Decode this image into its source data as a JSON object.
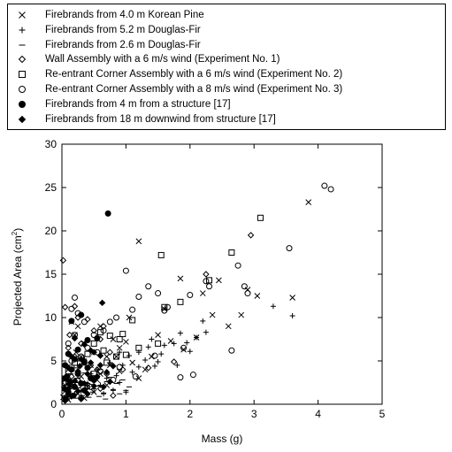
{
  "chart_data": {
    "type": "scatter",
    "xlabel": "Mass (g)",
    "ylabel": "Projected Area (cm",
    "ylabel_sup": "2",
    "ylabel_close": ")",
    "xlim": [
      0,
      5
    ],
    "ylim": [
      0,
      30
    ],
    "x_ticks": [
      "0",
      "1",
      "2",
      "3",
      "4",
      "5"
    ],
    "y_ticks": [
      "0",
      "5",
      "10",
      "15",
      "20",
      "25",
      "30"
    ],
    "grid": false,
    "legend_position": "top",
    "series": [
      {
        "name": "Firebrands from 4.0 m Korean Pine",
        "marker": "x",
        "points": [
          [
            3.85,
            23.3
          ],
          [
            1.2,
            18.8
          ],
          [
            2.45,
            14.3
          ],
          [
            1.85,
            14.5
          ],
          [
            2.2,
            12.8
          ],
          [
            2.9,
            13.2
          ],
          [
            3.05,
            12.5
          ],
          [
            3.6,
            12.3
          ],
          [
            1.6,
            11.0
          ],
          [
            2.35,
            10.3
          ],
          [
            2.8,
            10.3
          ],
          [
            1.05,
            10.0
          ],
          [
            0.15,
            9.5
          ],
          [
            0.25,
            9.0
          ],
          [
            0.6,
            9.0
          ],
          [
            2.6,
            9.0
          ],
          [
            1.5,
            8.0
          ],
          [
            0.8,
            7.5
          ],
          [
            1.0,
            7.2
          ],
          [
            1.7,
            7.3
          ],
          [
            2.1,
            7.7
          ],
          [
            0.9,
            6.5
          ],
          [
            1.4,
            5.5
          ],
          [
            0.5,
            6.0
          ],
          [
            0.35,
            7.0
          ],
          [
            0.2,
            8.0
          ],
          [
            0.7,
            5.5
          ],
          [
            1.1,
            4.8
          ],
          [
            1.3,
            4.0
          ],
          [
            0.45,
            4.5
          ],
          [
            0.1,
            4.0
          ],
          [
            0.05,
            3.0
          ],
          [
            0.3,
            3.2
          ],
          [
            0.6,
            3.5
          ],
          [
            0.9,
            3.8
          ],
          [
            1.2,
            3.0
          ],
          [
            0.15,
            2.5
          ],
          [
            0.4,
            2.0
          ],
          [
            0.7,
            2.2
          ],
          [
            0.05,
            1.5
          ],
          [
            0.25,
            1.2
          ],
          [
            0.5,
            1.4
          ],
          [
            0.02,
            0.8
          ],
          [
            0.1,
            0.5
          ],
          [
            0.35,
            0.7
          ],
          [
            1.9,
            6.3
          ],
          [
            0.75,
            4.5
          ],
          [
            0.55,
            2.8
          ],
          [
            0.85,
            5.5
          ],
          [
            0.22,
            6.0
          ]
        ]
      },
      {
        "name": "Firebrands from 5.2 m Douglas-Fir",
        "marker": "+",
        "points": [
          [
            3.3,
            11.3
          ],
          [
            3.6,
            10.2
          ],
          [
            2.2,
            9.6
          ],
          [
            1.85,
            8.2
          ],
          [
            2.1,
            7.7
          ],
          [
            2.25,
            8.3
          ],
          [
            1.95,
            7.1
          ],
          [
            1.75,
            7.0
          ],
          [
            1.6,
            6.8
          ],
          [
            1.4,
            7.5
          ],
          [
            1.35,
            6.6
          ],
          [
            1.55,
            5.8
          ],
          [
            1.2,
            6.0
          ],
          [
            1.05,
            5.6
          ],
          [
            0.95,
            4.5
          ],
          [
            1.2,
            4.3
          ],
          [
            1.8,
            4.5
          ],
          [
            1.45,
            4.4
          ],
          [
            1.1,
            3.7
          ],
          [
            0.85,
            3.3
          ],
          [
            0.7,
            3.0
          ],
          [
            0.9,
            2.5
          ],
          [
            0.6,
            2.2
          ],
          [
            0.5,
            1.8
          ],
          [
            0.4,
            2.4
          ],
          [
            0.3,
            1.5
          ],
          [
            0.2,
            1.2
          ],
          [
            0.15,
            2.0
          ],
          [
            0.1,
            1.0
          ],
          [
            0.05,
            0.6
          ],
          [
            0.45,
            3.5
          ],
          [
            0.55,
            4.0
          ],
          [
            0.75,
            4.8
          ],
          [
            0.25,
            3.8
          ],
          [
            0.35,
            5.2
          ],
          [
            1.0,
            1.4
          ],
          [
            0.8,
            1.6
          ],
          [
            0.65,
            1.2
          ],
          [
            2.0,
            6.1
          ],
          [
            1.5,
            4.9
          ],
          [
            1.3,
            5.1
          ],
          [
            0.9,
            6.0
          ]
        ]
      },
      {
        "name": "Firebrands from 2.6 m Douglas-Fir",
        "marker": "-",
        "points": [
          [
            0.05,
            1.0
          ],
          [
            0.1,
            1.5
          ],
          [
            0.15,
            2.0
          ],
          [
            0.2,
            2.5
          ],
          [
            0.25,
            3.0
          ],
          [
            0.3,
            2.2
          ],
          [
            0.35,
            3.6
          ],
          [
            0.4,
            1.8
          ],
          [
            0.45,
            2.9
          ],
          [
            0.5,
            3.3
          ],
          [
            0.55,
            2.1
          ],
          [
            0.6,
            4.0
          ],
          [
            0.65,
            1.3
          ],
          [
            0.7,
            2.6
          ],
          [
            0.75,
            3.1
          ],
          [
            0.8,
            1.7
          ],
          [
            0.85,
            2.4
          ],
          [
            0.9,
            1.2
          ],
          [
            0.95,
            2.8
          ],
          [
            1.0,
            1.6
          ],
          [
            1.05,
            2.0
          ],
          [
            0.08,
            0.5
          ],
          [
            0.12,
            0.9
          ],
          [
            0.18,
            1.1
          ],
          [
            0.22,
            0.7
          ],
          [
            0.28,
            1.6
          ],
          [
            0.32,
            1.0
          ],
          [
            0.38,
            2.5
          ],
          [
            0.42,
            0.8
          ],
          [
            0.48,
            1.4
          ],
          [
            0.58,
            0.9
          ],
          [
            0.68,
            0.6
          ],
          [
            0.03,
            2.0
          ],
          [
            0.06,
            3.0
          ],
          [
            0.14,
            3.5
          ],
          [
            0.24,
            4.2
          ],
          [
            0.34,
            4.6
          ]
        ]
      },
      {
        "name": "Wall Assembly with a 6 m/s wind (Experiment No. 1)",
        "marker": "diamond-open",
        "points": [
          [
            0.02,
            16.6
          ],
          [
            2.95,
            19.5
          ],
          [
            2.25,
            15.0
          ],
          [
            0.05,
            11.2
          ],
          [
            0.2,
            11.3
          ],
          [
            0.25,
            10.0
          ],
          [
            0.4,
            9.8
          ],
          [
            0.5,
            8.5
          ],
          [
            0.6,
            7.5
          ],
          [
            0.3,
            7.0
          ],
          [
            0.1,
            6.5
          ],
          [
            0.2,
            5.5
          ],
          [
            0.35,
            5.0
          ],
          [
            0.45,
            4.5
          ],
          [
            0.55,
            4.0
          ],
          [
            0.7,
            3.5
          ],
          [
            0.15,
            3.2
          ],
          [
            0.25,
            2.8
          ],
          [
            0.05,
            2.5
          ],
          [
            0.4,
            2.0
          ],
          [
            0.6,
            1.8
          ],
          [
            0.1,
            1.2
          ],
          [
            0.3,
            0.8
          ],
          [
            0.8,
            1.0
          ],
          [
            0.95,
            4.0
          ],
          [
            1.35,
            4.2
          ],
          [
            1.75,
            4.9
          ],
          [
            0.75,
            6.0
          ],
          [
            0.65,
            9.0
          ],
          [
            0.12,
            8.0
          ]
        ]
      },
      {
        "name": "Re-entrant Corner Assembly with a 6 m/s wind (Experiment No. 2)",
        "marker": "square-open",
        "points": [
          [
            3.1,
            21.5
          ],
          [
            1.55,
            17.2
          ],
          [
            2.65,
            17.5
          ],
          [
            2.3,
            14.3
          ],
          [
            1.85,
            11.8
          ],
          [
            1.6,
            11.2
          ],
          [
            1.1,
            9.7
          ],
          [
            0.95,
            8.1
          ],
          [
            0.9,
            7.5
          ],
          [
            0.5,
            7.0
          ],
          [
            0.65,
            6.2
          ],
          [
            0.4,
            5.8
          ],
          [
            0.3,
            5.3
          ],
          [
            0.2,
            4.8
          ],
          [
            0.15,
            4.2
          ],
          [
            0.1,
            3.8
          ],
          [
            0.5,
            3.5
          ],
          [
            0.7,
            4.8
          ],
          [
            0.85,
            5.5
          ],
          [
            0.05,
            2.5
          ],
          [
            0.25,
            2.2
          ],
          [
            1.5,
            7.0
          ],
          [
            1.2,
            6.5
          ],
          [
            1.0,
            5.7
          ],
          [
            0.75,
            7.9
          ],
          [
            0.6,
            8.3
          ]
        ]
      },
      {
        "name": "Re-entrant Corner Assembly with a 8 m/s wind (Experiment No. 3)",
        "marker": "circle-open",
        "points": [
          [
            4.1,
            25.2
          ],
          [
            4.2,
            24.8
          ],
          [
            3.55,
            18.0
          ],
          [
            2.75,
            16.0
          ],
          [
            1.0,
            15.4
          ],
          [
            2.25,
            14.2
          ],
          [
            2.3,
            13.6
          ],
          [
            1.35,
            13.6
          ],
          [
            1.5,
            12.8
          ],
          [
            1.2,
            12.4
          ],
          [
            2.85,
            13.6
          ],
          [
            2.9,
            12.8
          ],
          [
            2.0,
            12.6
          ],
          [
            1.65,
            11.2
          ],
          [
            1.6,
            10.8
          ],
          [
            0.2,
            12.3
          ],
          [
            1.1,
            10.9
          ],
          [
            0.85,
            10.0
          ],
          [
            0.75,
            9.5
          ],
          [
            0.65,
            8.5
          ],
          [
            0.5,
            8.0
          ],
          [
            0.35,
            9.5
          ],
          [
            0.2,
            8.0
          ],
          [
            0.1,
            7.0
          ],
          [
            0.4,
            6.5
          ],
          [
            0.55,
            6.0
          ],
          [
            0.3,
            5.5
          ],
          [
            0.15,
            5.0
          ],
          [
            1.45,
            5.6
          ],
          [
            1.9,
            6.5
          ],
          [
            2.65,
            6.2
          ],
          [
            1.85,
            3.1
          ],
          [
            2.05,
            3.4
          ],
          [
            0.9,
            4.3
          ],
          [
            0.6,
            3.8
          ],
          [
            0.25,
            3.5
          ],
          [
            0.05,
            3.0
          ],
          [
            0.1,
            2.5
          ],
          [
            0.45,
            2.0
          ],
          [
            0.8,
            2.8
          ],
          [
            1.15,
            3.2
          ],
          [
            0.15,
            11.0
          ],
          [
            0.25,
            10.5
          ]
        ]
      },
      {
        "name": "Firebrands from 4 m from a structure [17]",
        "marker": "circle-filled",
        "points": [
          [
            0.72,
            22.0
          ],
          [
            0.3,
            10.3
          ],
          [
            0.15,
            9.6
          ],
          [
            0.4,
            7.4
          ],
          [
            0.55,
            7.6
          ],
          [
            0.25,
            6.3
          ],
          [
            0.1,
            5.8
          ],
          [
            0.2,
            5.2
          ],
          [
            0.35,
            4.8
          ],
          [
            0.05,
            4.5
          ],
          [
            0.15,
            4.0
          ],
          [
            0.25,
            3.6
          ],
          [
            0.08,
            3.2
          ],
          [
            0.45,
            3.0
          ],
          [
            0.12,
            2.6
          ],
          [
            0.3,
            2.4
          ],
          [
            0.2,
            2.0
          ],
          [
            0.04,
            1.8
          ],
          [
            0.1,
            1.4
          ],
          [
            0.18,
            1.0
          ],
          [
            0.06,
            0.6
          ],
          [
            0.35,
            1.6
          ],
          [
            0.5,
            2.8
          ],
          [
            0.4,
            4.2
          ]
        ]
      },
      {
        "name": "Firebrands from 18 m downwind from structure [17]",
        "marker": "diamond-filled",
        "points": [
          [
            0.63,
            11.7
          ],
          [
            0.2,
            7.6
          ],
          [
            0.35,
            6.9
          ],
          [
            0.5,
            6.0
          ],
          [
            0.15,
            5.5
          ],
          [
            0.3,
            5.2
          ],
          [
            0.45,
            4.8
          ],
          [
            0.6,
            4.5
          ],
          [
            0.1,
            4.2
          ],
          [
            0.25,
            3.8
          ],
          [
            0.4,
            3.5
          ],
          [
            0.55,
            3.2
          ],
          [
            0.05,
            3.0
          ],
          [
            0.2,
            2.7
          ],
          [
            0.35,
            2.4
          ],
          [
            0.5,
            2.1
          ],
          [
            0.65,
            2.0
          ],
          [
            0.1,
            1.8
          ],
          [
            0.25,
            1.5
          ],
          [
            0.4,
            1.2
          ],
          [
            0.15,
            0.9
          ],
          [
            0.3,
            0.6
          ],
          [
            0.05,
            0.4
          ],
          [
            0.7,
            3.7
          ],
          [
            0.75,
            2.6
          ],
          [
            0.8,
            4.4
          ],
          [
            0.6,
            5.6
          ],
          [
            0.45,
            6.2
          ],
          [
            0.28,
            4.4
          ],
          [
            0.12,
            2.3
          ]
        ]
      }
    ]
  }
}
